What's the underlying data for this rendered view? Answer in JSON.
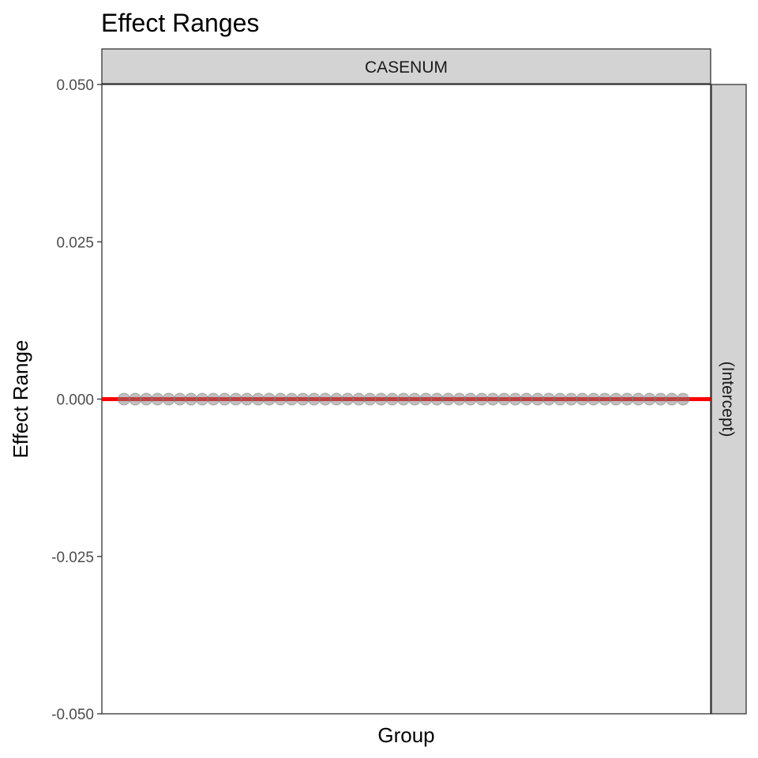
{
  "chart_data": {
    "type": "scatter",
    "title": "Effect Ranges",
    "xlabel": "Group",
    "ylabel": "Effect Range",
    "facet_column_label": "CASENUM",
    "facet_row_label": "(Intercept)",
    "ylim": [
      -0.05,
      0.05
    ],
    "y_ticks": [
      {
        "value": -0.05,
        "label": "-0.050"
      },
      {
        "value": -0.025,
        "label": "-0.025"
      },
      {
        "value": 0.0,
        "label": "0.000"
      },
      {
        "value": 0.025,
        "label": "0.025"
      },
      {
        "value": 0.05,
        "label": "0.050"
      }
    ],
    "reference_line": {
      "value": 0.0,
      "color": "#ff0000"
    },
    "point_color": "#808080",
    "strip_fill": "#d3d3d3",
    "grid": false,
    "series": [
      {
        "values": [
          0,
          0,
          0,
          0,
          0,
          0,
          0,
          0,
          0,
          0,
          0,
          0,
          0,
          0,
          0,
          0,
          0,
          0,
          0,
          0,
          0,
          0,
          0,
          0,
          0,
          0,
          0,
          0,
          0,
          0,
          0,
          0,
          0,
          0,
          0,
          0,
          0,
          0,
          0,
          0,
          0,
          0,
          0,
          0,
          0,
          0,
          0,
          0,
          0,
          0,
          0
        ]
      }
    ]
  }
}
